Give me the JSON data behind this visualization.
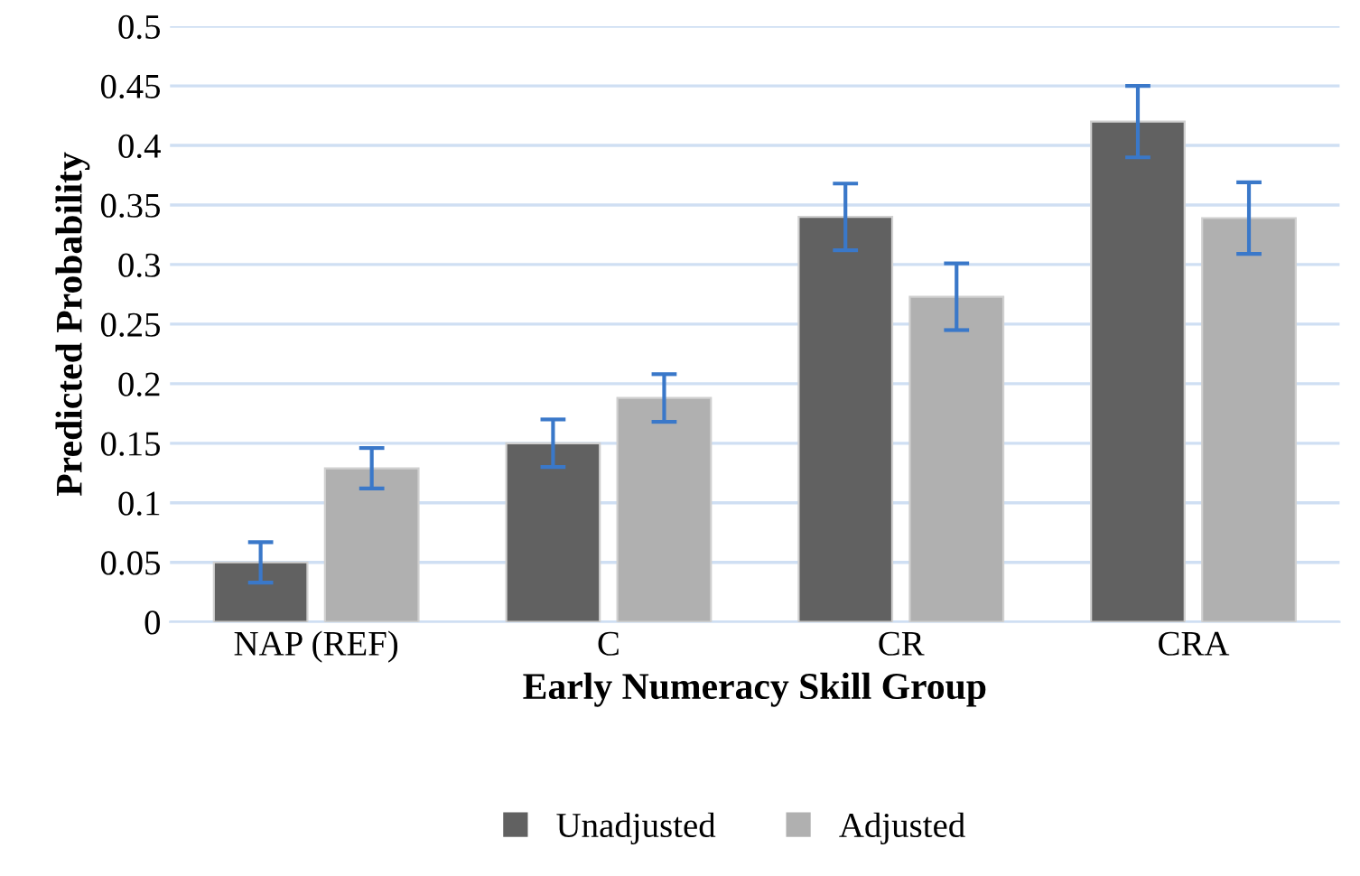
{
  "chart_data": {
    "type": "bar",
    "xlabel": "Early Numeracy Skill Group",
    "ylabel": "Predicted Probability",
    "categories": [
      "NAP (REF)",
      "C",
      "CR",
      "CRA"
    ],
    "series": [
      {
        "name": "Unadjusted",
        "color": "#616161",
        "values": [
          0.05,
          0.15,
          0.34,
          0.42
        ],
        "errors": [
          0.017,
          0.02,
          0.028,
          0.03
        ]
      },
      {
        "name": "Adjusted",
        "color": "#b0b0b0",
        "values": [
          0.129,
          0.188,
          0.273,
          0.339
        ],
        "errors": [
          0.017,
          0.02,
          0.028,
          0.03
        ]
      }
    ],
    "ylim": [
      0,
      0.5
    ],
    "yticks": [
      0,
      0.05,
      0.1,
      0.15,
      0.2,
      0.25,
      0.3,
      0.35,
      0.4,
      0.45,
      0.5
    ],
    "grid": "y",
    "legend": "bottom"
  }
}
